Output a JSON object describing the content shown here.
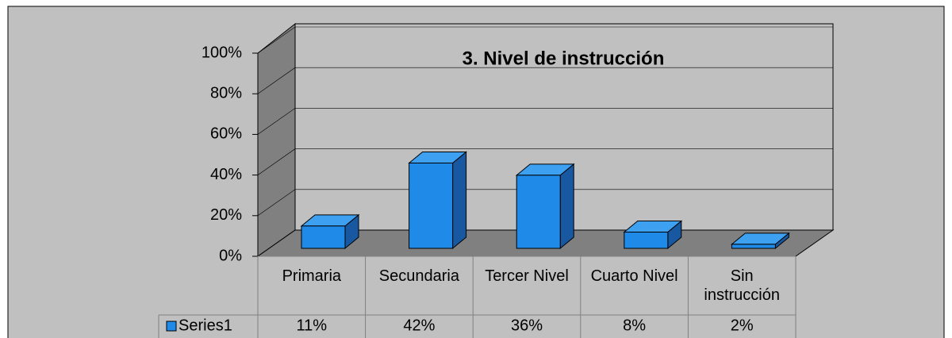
{
  "chart_data": {
    "type": "bar3d",
    "title": "3. Nivel de instrucción",
    "categories": [
      "Primaria",
      "Secundaria",
      "Tercer Nivel",
      "Cuarto Nivel",
      "Sin instrucción"
    ],
    "series": [
      {
        "name": "Series1",
        "color": "#1f8ae8",
        "values": [
          11,
          42,
          36,
          8,
          2
        ],
        "value_labels": [
          "11%",
          "42%",
          "36%",
          "8%",
          "2%"
        ]
      }
    ],
    "ylim": [
      0,
      100
    ],
    "yticks": [
      {
        "value": 0,
        "label": "0%"
      },
      {
        "value": 20,
        "label": "20%"
      },
      {
        "value": 40,
        "label": "40%"
      },
      {
        "value": 60,
        "label": "60%"
      },
      {
        "value": 80,
        "label": "80%"
      },
      {
        "value": 100,
        "label": "100%"
      }
    ],
    "grid": true,
    "data_table": true
  }
}
